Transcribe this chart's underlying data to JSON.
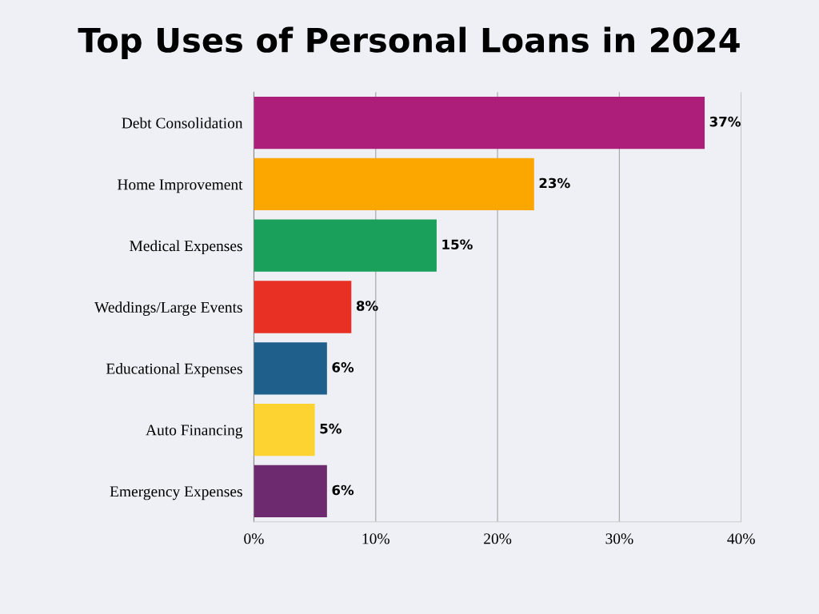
{
  "chart_data": {
    "type": "bar",
    "title": "Top Uses of Personal Loans in 2024",
    "orientation": "horizontal",
    "categories": [
      "Debt Consolidation",
      "Home Improvement",
      "Medical Expenses",
      "Weddings/Large Events",
      "Educational Expenses",
      "Auto Financing",
      "Emergency Expenses"
    ],
    "values": [
      37,
      23,
      15,
      8,
      6,
      5,
      6
    ],
    "value_labels": [
      "37%",
      "23%",
      "15%",
      "8%",
      "6%",
      "5%",
      "6%"
    ],
    "colors": [
      "#ad1e7a",
      "#fca600",
      "#1aa05a",
      "#e83024",
      "#1f5f8b",
      "#fdd331",
      "#6e2a6e"
    ],
    "xlim": [
      0,
      40
    ],
    "xticks": [
      {
        "value": 0,
        "label": "0%"
      },
      {
        "value": 10,
        "label": "10%"
      },
      {
        "value": 20,
        "label": "20%"
      },
      {
        "value": 30,
        "label": "30%"
      },
      {
        "value": 40,
        "label": "40%"
      }
    ],
    "grid": "x",
    "legend": false
  }
}
